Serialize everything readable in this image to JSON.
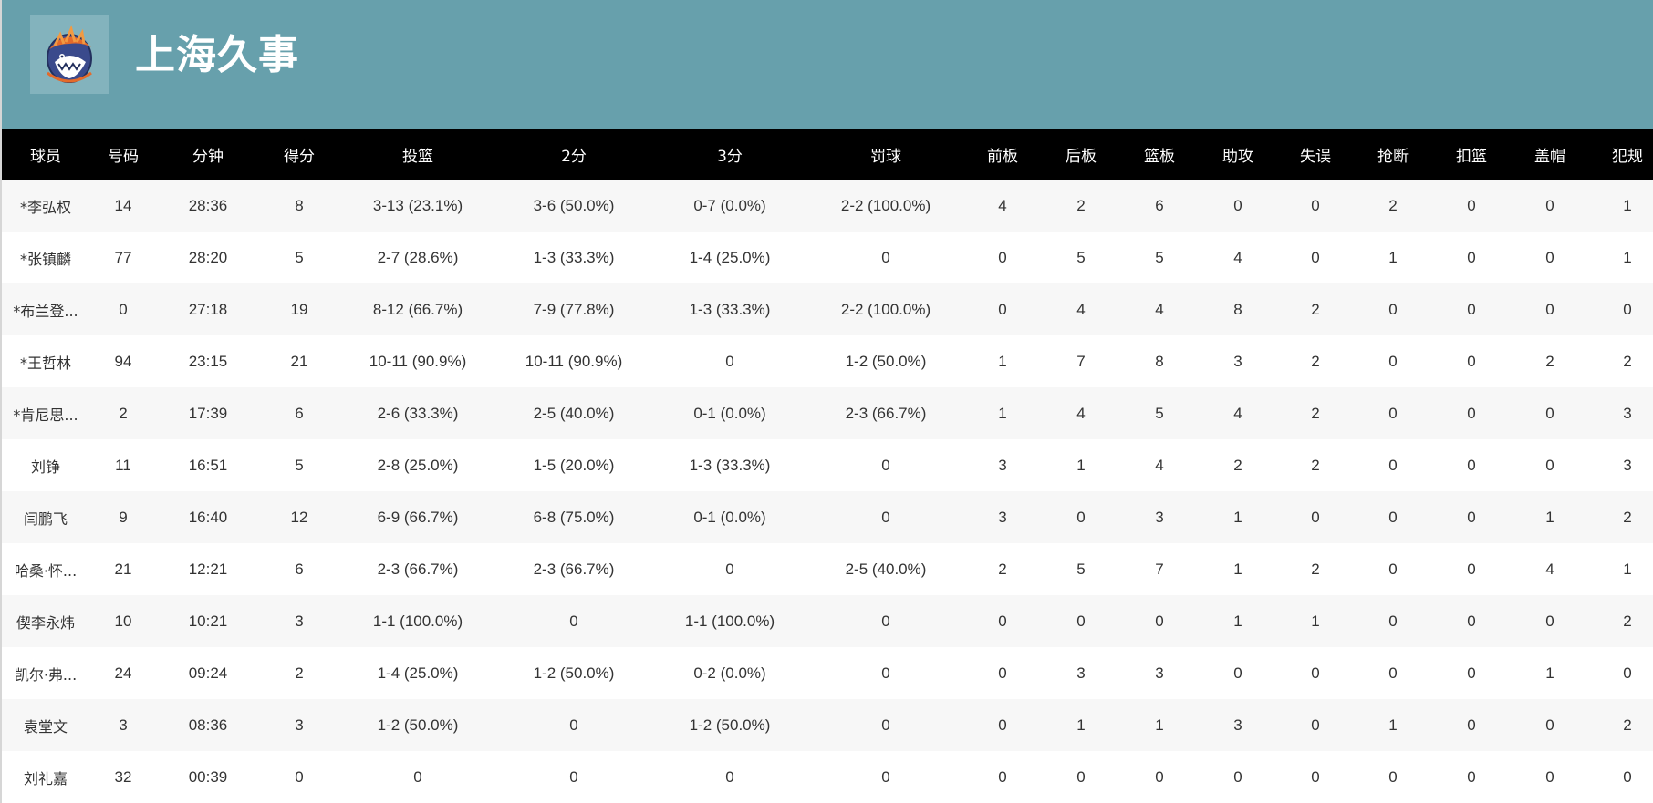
{
  "team": {
    "name": "上海久事",
    "logo_icon": "sharks-logo-icon",
    "header_color": "#67a0ac"
  },
  "columns": [
    "球员",
    "号码",
    "分钟",
    "得分",
    "投篮",
    "2分",
    "3分",
    "罚球",
    "前板",
    "后板",
    "篮板",
    "助攻",
    "失误",
    "抢断",
    "扣篮",
    "盖帽",
    "犯规"
  ],
  "rows": [
    [
      "*李弘权",
      "14",
      "28:36",
      "8",
      "3-13 (23.1%)",
      "3-6 (50.0%)",
      "0-7 (0.0%)",
      "2-2 (100.0%)",
      "4",
      "2",
      "6",
      "0",
      "0",
      "2",
      "0",
      "0",
      "1"
    ],
    [
      "*张镇麟",
      "77",
      "28:20",
      "5",
      "2-7 (28.6%)",
      "1-3 (33.3%)",
      "1-4 (25.0%)",
      "0",
      "0",
      "5",
      "5",
      "4",
      "0",
      "1",
      "0",
      "0",
      "1"
    ],
    [
      "*布兰登...",
      "0",
      "27:18",
      "19",
      "8-12 (66.7%)",
      "7-9 (77.8%)",
      "1-3 (33.3%)",
      "2-2 (100.0%)",
      "0",
      "4",
      "4",
      "8",
      "2",
      "0",
      "0",
      "0",
      "0"
    ],
    [
      "*王哲林",
      "94",
      "23:15",
      "21",
      "10-11 (90.9%)",
      "10-11 (90.9%)",
      "0",
      "1-2 (50.0%)",
      "1",
      "7",
      "8",
      "3",
      "2",
      "0",
      "0",
      "2",
      "2"
    ],
    [
      "*肯尼思...",
      "2",
      "17:39",
      "6",
      "2-6 (33.3%)",
      "2-5 (40.0%)",
      "0-1 (0.0%)",
      "2-3 (66.7%)",
      "1",
      "4",
      "5",
      "4",
      "2",
      "0",
      "0",
      "0",
      "3"
    ],
    [
      "刘铮",
      "11",
      "16:51",
      "5",
      "2-8 (25.0%)",
      "1-5 (20.0%)",
      "1-3 (33.3%)",
      "0",
      "3",
      "1",
      "4",
      "2",
      "2",
      "0",
      "0",
      "0",
      "3"
    ],
    [
      "闫鹏飞",
      "9",
      "16:40",
      "12",
      "6-9 (66.7%)",
      "6-8 (75.0%)",
      "0-1 (0.0%)",
      "0",
      "3",
      "0",
      "3",
      "1",
      "0",
      "0",
      "0",
      "1",
      "2"
    ],
    [
      "哈桑·怀...",
      "21",
      "12:21",
      "6",
      "2-3 (66.7%)",
      "2-3 (66.7%)",
      "0",
      "2-5 (40.0%)",
      "2",
      "5",
      "7",
      "1",
      "2",
      "0",
      "0",
      "4",
      "1"
    ],
    [
      "偰李永炜",
      "10",
      "10:21",
      "3",
      "1-1 (100.0%)",
      "0",
      "1-1 (100.0%)",
      "0",
      "0",
      "0",
      "0",
      "1",
      "1",
      "0",
      "0",
      "0",
      "2"
    ],
    [
      "凯尔·弗...",
      "24",
      "09:24",
      "2",
      "1-4 (25.0%)",
      "1-2 (50.0%)",
      "0-2 (0.0%)",
      "0",
      "0",
      "3",
      "3",
      "0",
      "0",
      "0",
      "0",
      "1",
      "0"
    ],
    [
      "袁堂文",
      "3",
      "08:36",
      "3",
      "1-2 (50.0%)",
      "0",
      "1-2 (50.0%)",
      "0",
      "0",
      "1",
      "1",
      "3",
      "0",
      "1",
      "0",
      "0",
      "2"
    ],
    [
      "刘礼嘉",
      "32",
      "00:39",
      "0",
      "0",
      "0",
      "0",
      "0",
      "0",
      "0",
      "0",
      "0",
      "0",
      "0",
      "0",
      "0",
      "0"
    ]
  ]
}
